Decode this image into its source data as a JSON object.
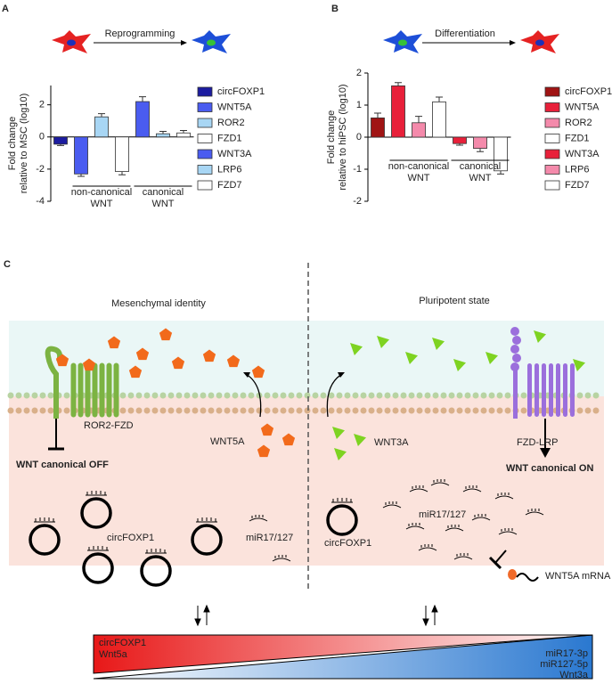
{
  "chart_data": [
    {
      "type": "bar",
      "panel_label": "A",
      "annotation": "Reprogramming",
      "y_label": [
        "Fold change",
        "relative to MSC (log10)"
      ],
      "ylim": [
        -4,
        3.2
      ],
      "yticks": [
        -4,
        -2,
        0,
        2
      ],
      "group_labels": [
        [
          "non-canonical",
          "WNT"
        ],
        [
          "canonical",
          "WNT"
        ]
      ],
      "series": [
        {
          "name": "circFOXP1",
          "color": "#1c1ca0",
          "values": [
            -0.45
          ],
          "errors": [
            0.08
          ]
        },
        {
          "name": "WNT5A",
          "color": "#4a5cf0",
          "values": [
            -2.3
          ],
          "errors": [
            0.15
          ]
        },
        {
          "name": "ROR2",
          "color": "#a8d6f4",
          "values": [
            1.25
          ],
          "errors": [
            0.2
          ]
        },
        {
          "name": "FZD1",
          "color": "#ffffff",
          "values": [
            -2.15
          ],
          "errors": [
            0.2
          ]
        },
        {
          "name": "WNT3A",
          "color": "#4a5cf0",
          "values": [
            2.2
          ],
          "errors": [
            0.3
          ]
        },
        {
          "name": "LRP6",
          "color": "#a8d6f4",
          "values": [
            0.2
          ],
          "errors": [
            0.15
          ]
        },
        {
          "name": "FZD7",
          "color": "#ffffff",
          "values": [
            0.25
          ],
          "errors": [
            0.15
          ]
        }
      ]
    },
    {
      "type": "bar",
      "panel_label": "B",
      "annotation": "Differentiation",
      "y_label": [
        "Fold change",
        "relative to hiPSC (log10)"
      ],
      "ylim": [
        -2,
        2
      ],
      "yticks": [
        -2,
        -1,
        0,
        1,
        2
      ],
      "group_labels": [
        [
          "non-canonical",
          "WNT"
        ],
        [
          "canonical",
          "WNT"
        ]
      ],
      "series": [
        {
          "name": "circFOXP1",
          "color": "#a01414",
          "values": [
            0.6
          ],
          "errors": [
            0.15
          ]
        },
        {
          "name": "WNT5A",
          "color": "#e8203a",
          "values": [
            1.6
          ],
          "errors": [
            0.1
          ]
        },
        {
          "name": "ROR2",
          "color": "#f48aab",
          "values": [
            0.45
          ],
          "errors": [
            0.2
          ]
        },
        {
          "name": "FZD1",
          "color": "#ffffff",
          "values": [
            1.1
          ],
          "errors": [
            0.15
          ]
        },
        {
          "name": "WNT3A",
          "color": "#e8203a",
          "values": [
            -0.2
          ],
          "errors": [
            0.05
          ]
        },
        {
          "name": "LRP6",
          "color": "#f48aab",
          "values": [
            -0.35
          ],
          "errors": [
            0.1
          ]
        },
        {
          "name": "FZD7",
          "color": "#ffffff",
          "values": [
            -1.05
          ],
          "errors": [
            0.1
          ]
        }
      ]
    }
  ],
  "diagram": {
    "panel_label": "C",
    "left_title": "Mesenchymal identity",
    "right_title": "Pluripotent state",
    "left_receptor": "ROR2-FZD",
    "left_status": "WNT canonical OFF",
    "left_ligand": "WNT5A",
    "left_circ": "circFOXP1",
    "left_mir": "miR17/127",
    "right_ligand": "WNT3A",
    "right_receptor": "FZD-LRP",
    "right_status": "WNT canonical ON",
    "right_mir": "miR17/127",
    "right_circ": "circFOXP1",
    "right_mrna": "WNT5A mRNA",
    "gradient_left": [
      "circFOXP1",
      "Wnt5a"
    ],
    "gradient_right": [
      "miR17-3p",
      "miR127-5p",
      "Wnt3a"
    ]
  }
}
